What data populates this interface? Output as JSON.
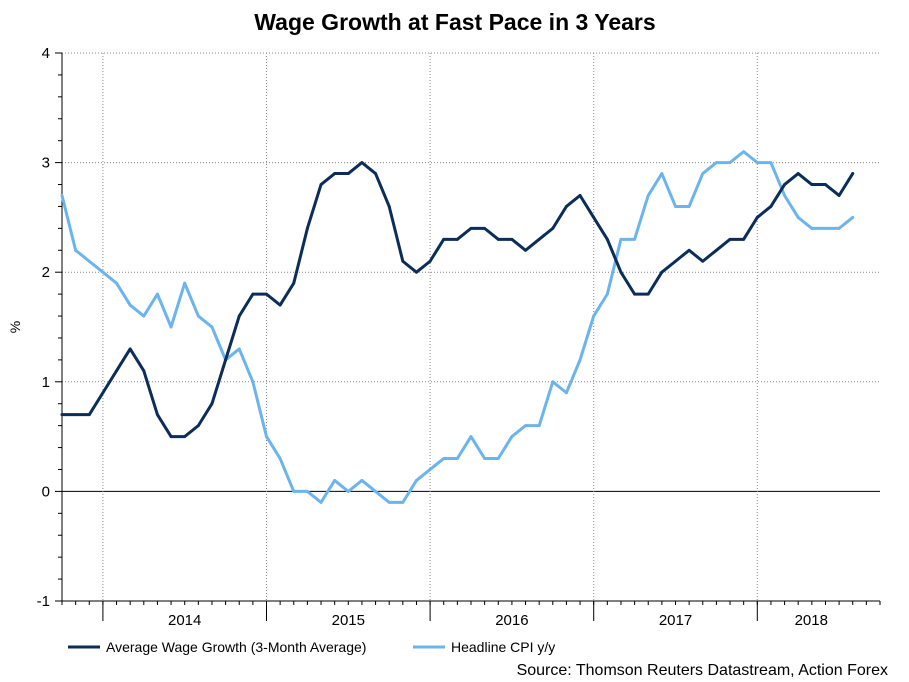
{
  "chart_data": {
    "type": "line",
    "title": "Wage Growth at Fast Pace in 3 Years",
    "ylabel": "%",
    "xlabel": "",
    "ylim": [
      -1,
      4
    ],
    "yticks": [
      -1,
      0,
      1,
      2,
      3,
      4
    ],
    "y_minor_step": 0.2,
    "x_start": 2013.25,
    "x_end": 2018.25,
    "year_gridlines": [
      2013.5,
      2014.5,
      2015.5,
      2016.5,
      2017.5
    ],
    "x_tick_labels": [
      {
        "label": "2014",
        "at": 2014.0
      },
      {
        "label": "2015",
        "at": 2015.0
      },
      {
        "label": "2016",
        "at": 2016.0
      },
      {
        "label": "2017",
        "at": 2017.0
      },
      {
        "label": "2018",
        "at": 2017.83
      }
    ],
    "grid": true,
    "legend_position": "bottom-left",
    "source": "Source: Thomson Reuters Datastream, Action Forex",
    "series": [
      {
        "name": "Average Wage Growth (3-Month Average)",
        "color": "#0b2d5a",
        "x_start": 2013.25,
        "step": 0.08333,
        "values": [
          0.7,
          0.7,
          0.7,
          0.9,
          1.1,
          1.3,
          1.1,
          0.7,
          0.5,
          0.5,
          0.6,
          0.8,
          1.2,
          1.6,
          1.8,
          1.8,
          1.7,
          1.9,
          2.4,
          2.8,
          2.9,
          2.9,
          3.0,
          2.9,
          2.6,
          2.1,
          2.0,
          2.1,
          2.3,
          2.3,
          2.4,
          2.4,
          2.3,
          2.3,
          2.2,
          2.3,
          2.4,
          2.6,
          2.7,
          2.5,
          2.3,
          2.0,
          1.8,
          1.8,
          2.0,
          2.1,
          2.2,
          2.1,
          2.2,
          2.3,
          2.3,
          2.5,
          2.6,
          2.8,
          2.9,
          2.8,
          2.8,
          2.7,
          2.9
        ]
      },
      {
        "name": "Headline CPI y/y",
        "color": "#6cb4ee",
        "x_start": 2013.25,
        "step": 0.08333,
        "values": [
          2.7,
          2.2,
          2.1,
          2.0,
          1.9,
          1.7,
          1.6,
          1.8,
          1.5,
          1.9,
          1.6,
          1.5,
          1.2,
          1.3,
          1.0,
          0.5,
          0.3,
          0.0,
          0.0,
          -0.1,
          0.1,
          0.0,
          0.1,
          0.0,
          -0.1,
          -0.1,
          0.1,
          0.2,
          0.3,
          0.3,
          0.5,
          0.3,
          0.3,
          0.5,
          0.6,
          0.6,
          1.0,
          0.9,
          1.2,
          1.6,
          1.8,
          2.3,
          2.3,
          2.7,
          2.9,
          2.6,
          2.6,
          2.9,
          3.0,
          3.0,
          3.1,
          3.0,
          3.0,
          2.7,
          2.5,
          2.4,
          2.4,
          2.4,
          2.5
        ]
      }
    ]
  }
}
